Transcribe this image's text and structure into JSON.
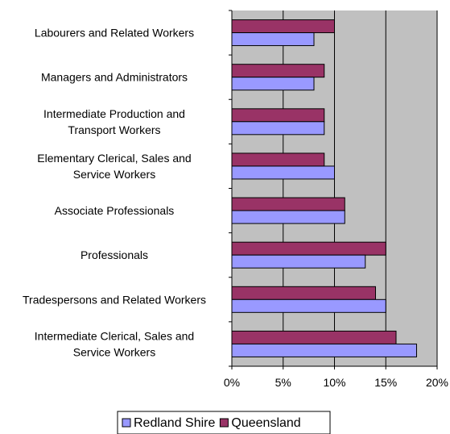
{
  "chart_data": {
    "type": "bar",
    "orientation": "horizontal",
    "categories": [
      [
        "Labourers and Related Workers"
      ],
      [
        "Managers and Administrators"
      ],
      [
        "Intermediate Production and",
        "Transport Workers"
      ],
      [
        "Elementary Clerical, Sales and",
        "Service Workers"
      ],
      [
        "Associate Professionals"
      ],
      [
        "Professionals"
      ],
      [
        "Tradespersons and Related Workers"
      ],
      [
        "Intermediate Clerical, Sales and",
        "Service Workers"
      ]
    ],
    "series": [
      {
        "name": "Queensland",
        "color": "#993366",
        "values": [
          10,
          9,
          9,
          9,
          11,
          15,
          14,
          16
        ]
      },
      {
        "name": "Redland Shire",
        "color": "#9999ff",
        "values": [
          8,
          8,
          9,
          10,
          11,
          13,
          15,
          18
        ]
      }
    ],
    "xlim": [
      0,
      20
    ],
    "xticks": [
      0,
      5,
      10,
      15,
      20
    ],
    "tick_suffix": "%",
    "gridlines": true,
    "plot_background": "#c0c0c0",
    "legend": {
      "position": "bottom",
      "order": [
        "Redland Shire",
        "Queensland"
      ]
    }
  }
}
